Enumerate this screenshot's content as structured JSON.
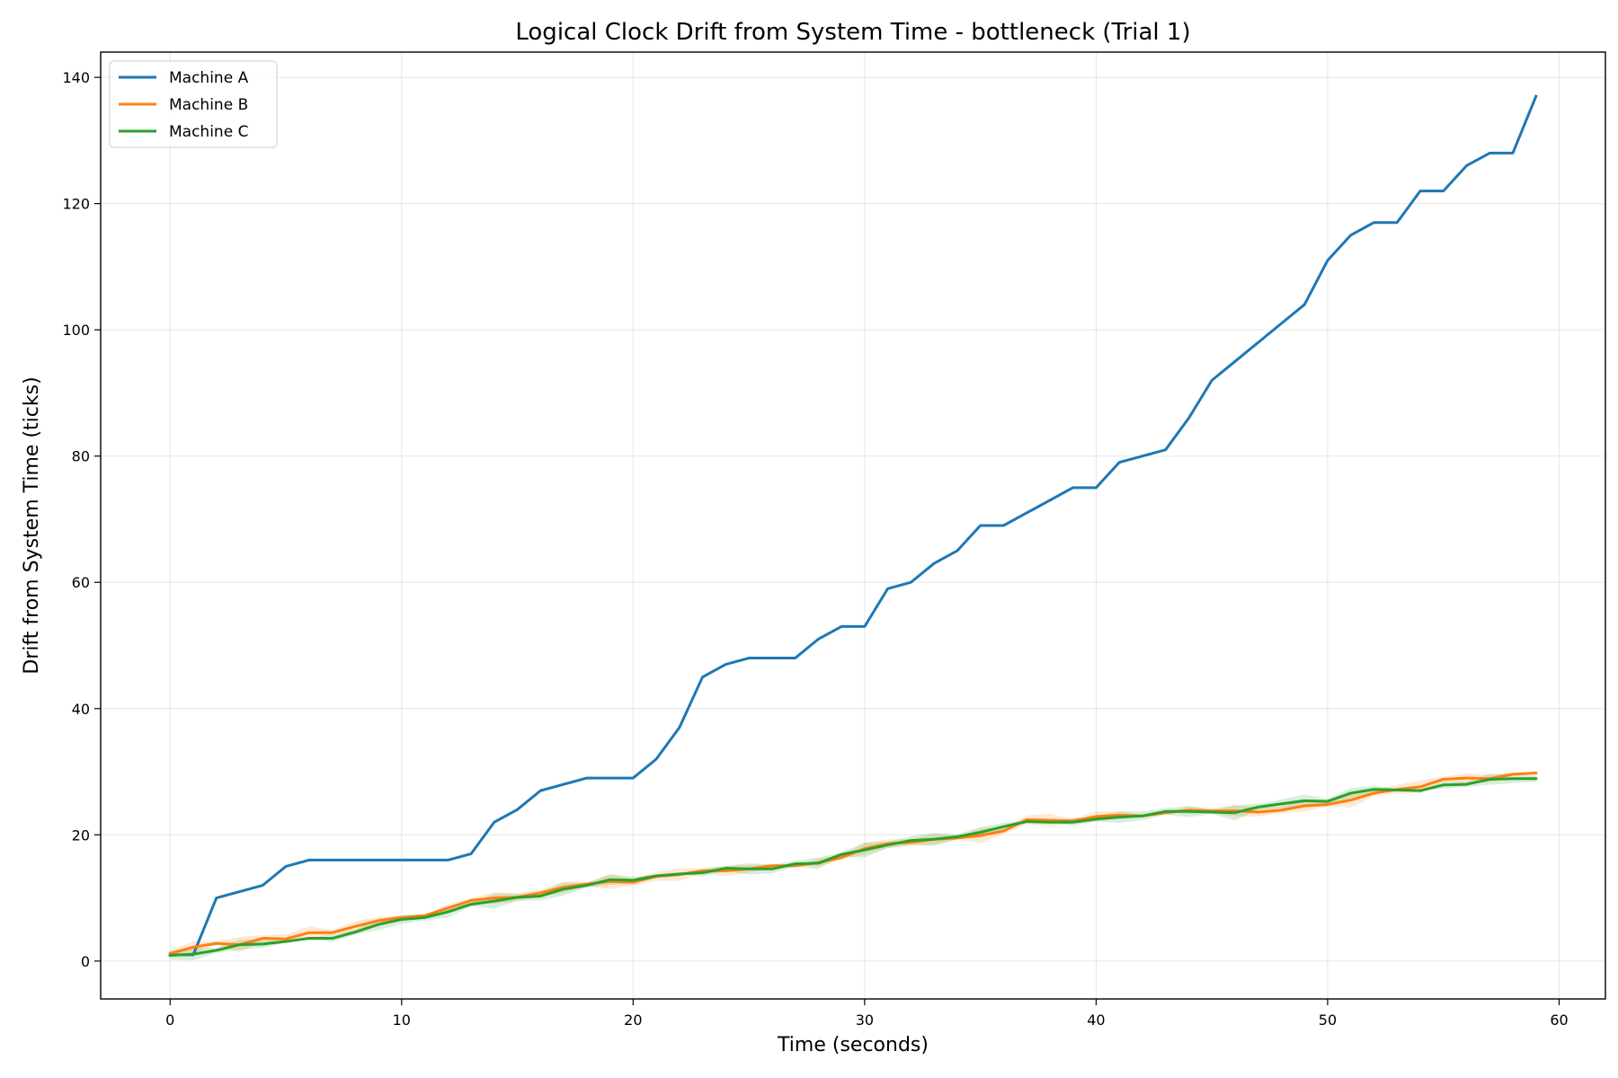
{
  "chart_data": {
    "type": "line",
    "title": "Logical Clock Drift from System Time - bottleneck (Trial 1)",
    "xlabel": "Time (seconds)",
    "ylabel": "Drift from System Time (ticks)",
    "xlim": [
      -3,
      62
    ],
    "ylim": [
      -6,
      144
    ],
    "xticks": [
      0,
      10,
      20,
      30,
      40,
      50,
      60
    ],
    "yticks": [
      0,
      20,
      40,
      60,
      80,
      100,
      120,
      140
    ],
    "grid": true,
    "legend_position": "top-left",
    "x": [
      0,
      1,
      2,
      3,
      4,
      5,
      6,
      7,
      8,
      9,
      10,
      11,
      12,
      13,
      14,
      15,
      16,
      17,
      18,
      19,
      20,
      21,
      22,
      23,
      24,
      25,
      26,
      27,
      28,
      29,
      30,
      31,
      32,
      33,
      34,
      35,
      36,
      37,
      38,
      39,
      40,
      41,
      42,
      43,
      44,
      45,
      46,
      47,
      48,
      49,
      50,
      51,
      52,
      53,
      54,
      55,
      56,
      57,
      58,
      59
    ],
    "series": [
      {
        "name": "Machine A",
        "color": "#1f77b4",
        "values": [
          1,
          1,
          10,
          11,
          12,
          15,
          16,
          16,
          16,
          16,
          16,
          16,
          16,
          17,
          22,
          24,
          27,
          28,
          29,
          29,
          29,
          32,
          37,
          45,
          47,
          48,
          48,
          48,
          51,
          53,
          53,
          59,
          60,
          63,
          65,
          69,
          69,
          71,
          73,
          75,
          75,
          79,
          80,
          81,
          86,
          92,
          95,
          98,
          101,
          104,
          111,
          115,
          117,
          117,
          122,
          122,
          126,
          128,
          128,
          137
        ]
      },
      {
        "name": "Machine B",
        "color": "#ff7f0e",
        "values": [
          1.2,
          2.2,
          2.8,
          2.6,
          3.6,
          3.5,
          4.5,
          4.5,
          5.5,
          6.4,
          6.9,
          7.2,
          8.4,
          9.6,
          10,
          10.1,
          10.8,
          11.7,
          12.2,
          12.6,
          12.5,
          13.4,
          13.7,
          14.3,
          14.3,
          14.6,
          15.1,
          15.1,
          15.6,
          16.4,
          17.8,
          18.6,
          18.8,
          19.3,
          19.5,
          19.9,
          20.6,
          22.4,
          22.3,
          22.2,
          22.9,
          23.1,
          23,
          23.5,
          23.9,
          23.8,
          23.8,
          23.6,
          23.9,
          24.6,
          24.8,
          25.5,
          26.6,
          27.2,
          27.6,
          28.8,
          29,
          28.9,
          29.6,
          29.8
        ]
      },
      {
        "name": "Machine C",
        "color": "#2ca02c",
        "values": [
          0.9,
          1.1,
          1.7,
          2.6,
          2.7,
          3.1,
          3.6,
          3.6,
          4.6,
          5.8,
          6.6,
          6.9,
          7.8,
          9,
          9.5,
          10.1,
          10.3,
          11.4,
          12,
          12.9,
          12.8,
          13.5,
          13.8,
          14,
          14.7,
          14.6,
          14.6,
          15.4,
          15.5,
          16.9,
          17.6,
          18.4,
          19.1,
          19.3,
          19.7,
          20.4,
          21.3,
          22.1,
          22,
          22,
          22.5,
          22.8,
          23,
          23.7,
          23.7,
          23.6,
          23.5,
          24.4,
          24.9,
          25.4,
          25.3,
          26.6,
          27.2,
          27.1,
          27,
          27.9,
          28,
          28.8,
          28.9,
          28.9
        ]
      }
    ]
  }
}
